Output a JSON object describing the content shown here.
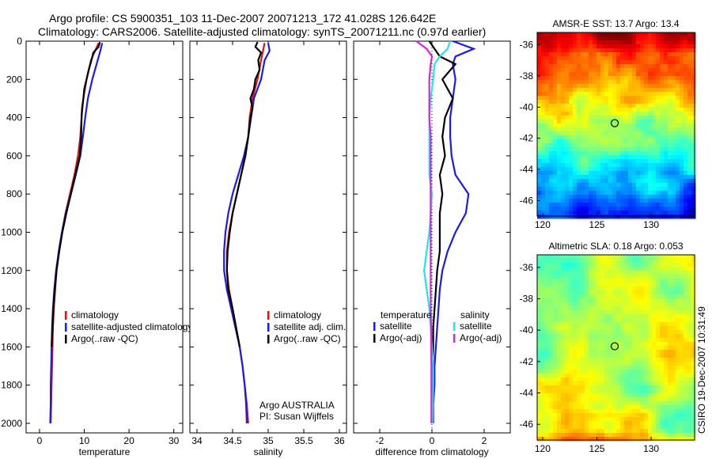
{
  "title_line1": "Argo profile: CS 5900351_103 11-Dec-2007 20071213_172 41.028S 126.642E",
  "title_line2": "Climatology: CARS2006. Satellite-adjusted climatology: synTS_20071211.nc (0.97d earlier)",
  "side_label": "CSIRO 19-Dec-2007 10:31:49",
  "colors": {
    "climatology": "#dd1111",
    "satellite": "#1a1aee",
    "argo": "#000000",
    "cyan": "#22e6e6",
    "magenta": "#dd22dd"
  },
  "chart_data": [
    {
      "type": "line",
      "xlabel": "temperature",
      "ylabel": "",
      "xlim": [
        -3,
        32
      ],
      "ylim": [
        2050,
        0
      ],
      "xticks": [
        "0",
        "10",
        "20",
        "30"
      ],
      "yticks": [
        "0",
        "200",
        "400",
        "600",
        "800",
        "1000",
        "1200",
        "1400",
        "1600",
        "1800",
        "2000"
      ],
      "legend": [
        "climatology",
        "satellite-adjusted climatology",
        "Argo(..raw -QC)"
      ],
      "legend_position": "lower-right",
      "series": [
        {
          "name": "climatology",
          "color": "climatology",
          "y": [
            10,
            100,
            200,
            300,
            400,
            500,
            600,
            700,
            800,
            900,
            1000,
            1100,
            1200,
            1300,
            1400,
            1500,
            1600,
            1700,
            1800,
            1900,
            2000
          ],
          "x": [
            13.2,
            11.5,
            10.5,
            9.8,
            9.4,
            9.1,
            8.6,
            7.8,
            6.8,
            5.8,
            5.0,
            4.3,
            3.8,
            3.5,
            3.2,
            3.0,
            2.9,
            2.8,
            2.7,
            2.6,
            2.5
          ]
        },
        {
          "name": "satellite-adjusted climatology",
          "color": "satellite",
          "y": [
            10,
            50,
            100,
            200,
            300,
            400,
            500,
            600,
            700,
            800,
            900,
            1000,
            1100,
            1200,
            1300,
            1400,
            1500,
            1600,
            1700,
            1800,
            1900,
            2000
          ],
          "x": [
            14.0,
            13.6,
            13.0,
            11.8,
            10.8,
            10.2,
            9.7,
            9.1,
            8.1,
            7.0,
            5.9,
            5.0,
            4.3,
            3.7,
            3.3,
            3.0,
            2.8,
            2.7,
            2.6,
            2.5,
            2.5,
            2.4
          ]
        },
        {
          "name": "Argo(..raw -QC)",
          "color": "argo",
          "y": [
            5,
            30,
            60,
            100,
            150,
            200,
            250,
            300,
            350,
            400,
            500,
            600,
            700,
            800,
            900,
            1000,
            1100,
            1200,
            1300,
            1400,
            1500,
            1600
          ],
          "x": [
            13.5,
            13.2,
            12.0,
            11.6,
            11.0,
            10.5,
            10.0,
            9.8,
            9.5,
            9.4,
            9.3,
            9.0,
            8.0,
            7.0,
            6.0,
            5.1,
            4.4,
            3.8,
            3.4,
            3.1,
            2.9,
            2.7
          ]
        }
      ]
    },
    {
      "type": "line",
      "xlabel": "salinity",
      "ylabel": "",
      "xlim": [
        33.9,
        36.1
      ],
      "ylim": [
        2050,
        0
      ],
      "xticks": [
        "34",
        "34.5",
        "35",
        "35.5",
        "36"
      ],
      "legend": [
        "climatology",
        "satellite adj. clim.",
        "Argo(..raw -QC)"
      ],
      "legend_position": "lower-right",
      "annotation": [
        "Argo AUSTRALIA",
        "PI: Susan Wijffels"
      ],
      "series": [
        {
          "name": "climatology",
          "color": "climatology",
          "y": [
            10,
            100,
            200,
            300,
            400,
            500,
            600,
            700,
            800,
            900,
            1000,
            1100,
            1200,
            1300,
            1400,
            1500,
            1600,
            1700,
            1800,
            1900,
            2000
          ],
          "x": [
            34.95,
            34.9,
            34.85,
            34.78,
            34.74,
            34.72,
            34.68,
            34.62,
            34.56,
            34.5,
            34.45,
            34.42,
            34.42,
            34.45,
            34.5,
            34.55,
            34.6,
            34.64,
            34.67,
            34.7,
            34.72
          ]
        },
        {
          "name": "satellite adj. clim.",
          "color": "satellite",
          "y": [
            10,
            50,
            100,
            200,
            300,
            400,
            500,
            600,
            700,
            800,
            900,
            1000,
            1100,
            1200,
            1300,
            1400,
            1500,
            1600,
            1700,
            1800,
            1900,
            2000
          ],
          "x": [
            35.0,
            35.02,
            34.95,
            34.9,
            34.8,
            34.76,
            34.72,
            34.66,
            34.58,
            34.5,
            34.44,
            34.4,
            34.38,
            34.38,
            34.42,
            34.48,
            34.54,
            34.6,
            34.64,
            34.67,
            34.69,
            34.7
          ]
        },
        {
          "name": "Argo(..raw -QC)",
          "color": "argo",
          "y": [
            5,
            30,
            60,
            100,
            150,
            200,
            250,
            300,
            350,
            400,
            500,
            600,
            700,
            800,
            900,
            1000,
            1100,
            1200,
            1300,
            1400,
            1500,
            1600
          ],
          "x": [
            34.85,
            34.82,
            34.9,
            34.86,
            34.88,
            34.82,
            34.8,
            34.75,
            34.78,
            34.75,
            34.72,
            34.68,
            34.62,
            34.56,
            34.5,
            34.46,
            34.43,
            34.42,
            34.44,
            34.5,
            34.55,
            34.6
          ]
        }
      ]
    },
    {
      "type": "line",
      "xlabel": "difference from climatology",
      "ylabel": "",
      "xlim": [
        -3,
        3
      ],
      "ylim": [
        2050,
        0
      ],
      "xticks": [
        "-2",
        "0",
        "2"
      ],
      "legend_header": [
        "temperature",
        "salinity"
      ],
      "legend": [
        "satellite",
        "Argo(-adj)",
        "satellite",
        "Argo(-adj)"
      ],
      "legend_position": "lower-center",
      "series": [
        {
          "name": "satellite",
          "color": "satellite",
          "y": [
            0,
            40,
            80,
            120,
            200,
            300,
            400,
            500,
            600,
            700,
            800,
            900,
            1000,
            1100,
            1200,
            1300,
            1400,
            1500,
            1600,
            1700,
            1800,
            1900,
            2000
          ],
          "x": [
            0.8,
            1.6,
            0.9,
            0.8,
            0.9,
            0.8,
            0.7,
            0.7,
            0.75,
            0.9,
            1.4,
            1.3,
            0.9,
            0.6,
            0.4,
            0.3,
            0.25,
            0.2,
            0.15,
            0.1,
            0.1,
            0.05,
            0.05
          ]
        },
        {
          "name": "Argo(-adj)",
          "color": "argo",
          "y": [
            0,
            40,
            80,
            120,
            200,
            300,
            400,
            500,
            600,
            700,
            800,
            900,
            1000,
            1100,
            1200,
            1300,
            1400,
            1500,
            1600,
            1700,
            1800,
            1900,
            2000
          ],
          "x": [
            -0.1,
            0.1,
            0.3,
            0.9,
            0.4,
            0.8,
            0.5,
            0.4,
            0.5,
            0.3,
            0.4,
            0.3,
            0.3,
            0.3,
            0.2,
            0.15,
            0.1,
            0.05,
            0.05,
            0.03,
            0.03,
            0.02,
            0.02
          ]
        },
        {
          "name": "satellite",
          "color": "cyan",
          "y": [
            0,
            40,
            80,
            120,
            200,
            300,
            400,
            500,
            600,
            700,
            800,
            900,
            1000,
            1100,
            1200,
            1300,
            1400,
            1500,
            1600,
            1700,
            1800,
            1900,
            2000
          ],
          "x": [
            0.7,
            0.6,
            0.3,
            0.1,
            0.05,
            -0.05,
            -0.1,
            -0.1,
            -0.1,
            -0.1,
            0,
            -0.05,
            -0.1,
            -0.2,
            -0.3,
            -0.2,
            -0.1,
            -0.05,
            0,
            0.05,
            0.05,
            0.03,
            0.02
          ]
        },
        {
          "name": "Argo(-adj)",
          "color": "magenta",
          "y": [
            0,
            40,
            80,
            120,
            200,
            300,
            400,
            500,
            600,
            700,
            800,
            900,
            1000,
            1100,
            1200,
            1300,
            1400,
            1500,
            1600,
            1700,
            1800,
            1900,
            2000
          ],
          "x": [
            -0.6,
            -0.2,
            0,
            -0.05,
            -0.1,
            -0.1,
            -0.1,
            -0.05,
            -0.05,
            -0.05,
            -0.05,
            -0.05,
            -0.05,
            -0.05,
            -0.05,
            -0.05,
            -0.05,
            -0.03,
            -0.03,
            -0.02,
            -0.02,
            -0.02,
            -0.02
          ]
        }
      ]
    },
    {
      "type": "heatmap",
      "title": "AMSR-E SST: 13.7 Argo: 13.4",
      "xlim": [
        119.5,
        134
      ],
      "ylim": [
        -47,
        -35.2
      ],
      "xticks": [
        "120",
        "125",
        "130"
      ],
      "yticks": [
        "-36",
        "-38",
        "-40",
        "-42",
        "-44",
        "-46"
      ],
      "marker": {
        "lon": 126.642,
        "lat": -41.028
      },
      "colormap": "sst"
    },
    {
      "type": "heatmap",
      "title": "Altimetric SLA: 0.18 Argo: 0.053",
      "xlim": [
        119.5,
        134
      ],
      "ylim": [
        -47,
        -35.2
      ],
      "xticks": [
        "120",
        "125",
        "130"
      ],
      "yticks": [
        "-36",
        "-38",
        "-40",
        "-42",
        "-44",
        "-46"
      ],
      "marker": {
        "lon": 126.642,
        "lat": -41.028
      },
      "colormap": "sla"
    }
  ]
}
